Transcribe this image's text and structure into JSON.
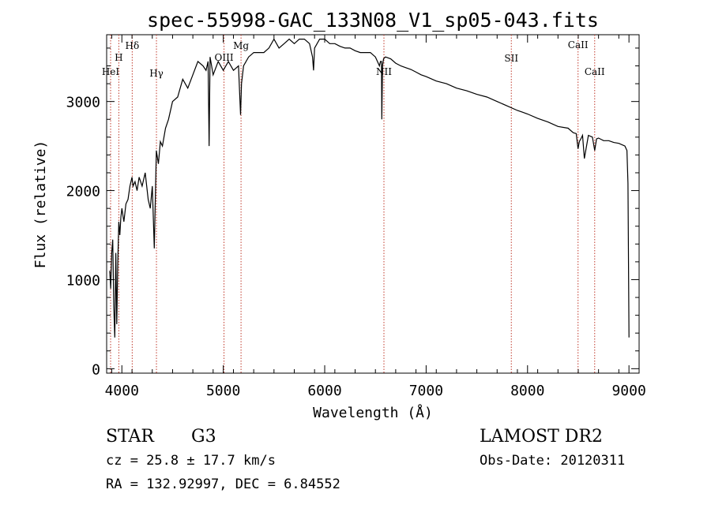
{
  "chart_data": {
    "type": "line",
    "title": "spec-55998-GAC_133N08_V1_sp05-043.fits",
    "xlabel": "Wavelength (Å)",
    "ylabel": "Flux (relative)",
    "xlim": [
      3850,
      9100
    ],
    "ylim": [
      -50,
      3750
    ],
    "x_ticks": [
      4000,
      5000,
      6000,
      7000,
      8000,
      9000
    ],
    "y_ticks": [
      0,
      1000,
      2000,
      3000
    ],
    "grid": false,
    "series": [
      {
        "x": [
          3880,
          3890,
          3900,
          3910,
          3920,
          3930,
          3940,
          3950,
          3960,
          3970,
          3980,
          3990,
          4000,
          4020,
          4040,
          4060,
          4080,
          4100,
          4110,
          4130,
          4150,
          4170,
          4200,
          4230,
          4260,
          4280,
          4300,
          4320,
          4340,
          4360,
          4380,
          4400,
          4430,
          4460,
          4500,
          4550,
          4600,
          4650,
          4700,
          4750,
          4800,
          4830,
          4850,
          4860,
          4870,
          4900,
          4950,
          5000,
          5050,
          5100,
          5150,
          5170,
          5180,
          5200,
          5250,
          5300,
          5350,
          5400,
          5450,
          5500,
          5550,
          5600,
          5650,
          5700,
          5750,
          5800,
          5850,
          5880,
          5890,
          5900,
          5950,
          6000,
          6050,
          6100,
          6150,
          6200,
          6250,
          6300,
          6350,
          6400,
          6450,
          6500,
          6540,
          6550,
          6560,
          6563,
          6570,
          6580,
          6600,
          6650,
          6700,
          6750,
          6800,
          6850,
          6900,
          6950,
          7000,
          7100,
          7200,
          7300,
          7400,
          7500,
          7600,
          7700,
          7800,
          7900,
          7950,
          8000,
          8100,
          8200,
          8300,
          8400,
          8450,
          8480,
          8498,
          8510,
          8530,
          8542,
          8560,
          8600,
          8640,
          8662,
          8680,
          8700,
          8750,
          8800,
          8850,
          8900,
          8960,
          8980,
          8990,
          9000
        ],
        "y": [
          1100,
          900,
          1300,
          1450,
          700,
          350,
          1300,
          500,
          1200,
          1650,
          1500,
          1700,
          1800,
          1650,
          1850,
          1900,
          2050,
          2150,
          2050,
          2100,
          2000,
          2150,
          2050,
          2200,
          1900,
          1800,
          2050,
          1350,
          2450,
          2300,
          2550,
          2500,
          2700,
          2800,
          3000,
          3050,
          3250,
          3150,
          3300,
          3450,
          3400,
          3350,
          3450,
          2500,
          3500,
          3300,
          3450,
          3350,
          3450,
          3350,
          3400,
          2850,
          3200,
          3400,
          3500,
          3550,
          3550,
          3550,
          3600,
          3700,
          3600,
          3650,
          3700,
          3650,
          3700,
          3700,
          3650,
          3500,
          3350,
          3600,
          3700,
          3700,
          3650,
          3650,
          3620,
          3600,
          3600,
          3570,
          3550,
          3550,
          3550,
          3500,
          3400,
          3450,
          3450,
          2800,
          3400,
          3480,
          3500,
          3480,
          3430,
          3400,
          3380,
          3360,
          3330,
          3300,
          3280,
          3230,
          3200,
          3150,
          3120,
          3080,
          3050,
          3000,
          2950,
          2900,
          2880,
          2860,
          2810,
          2770,
          2720,
          2700,
          2650,
          2640,
          2470,
          2550,
          2590,
          2620,
          2360,
          2620,
          2600,
          2450,
          2580,
          2590,
          2560,
          2560,
          2540,
          2530,
          2500,
          2450,
          2080,
          350
        ]
      }
    ],
    "spectral_lines": [
      {
        "label": "HeI",
        "wavelength": 3889
      },
      {
        "label": "H",
        "wavelength": 3970
      },
      {
        "label": "Hδ",
        "wavelength": 4102
      },
      {
        "label": "Hγ",
        "wavelength": 4341
      },
      {
        "label": "OIII",
        "wavelength": 5007
      },
      {
        "label": "Mg",
        "wavelength": 5175
      },
      {
        "label": "NII",
        "wavelength": 6584
      },
      {
        "label": "SII",
        "wavelength": 7840
      },
      {
        "label": "CaII",
        "wavelength": 8498
      },
      {
        "label": "CaII",
        "wavelength": 8662
      }
    ]
  },
  "info": {
    "object_class": "STAR",
    "subclass": "G3",
    "survey": "LAMOST DR2",
    "cz": "cz = 25.8 ± 17.7 km/s",
    "obs_date": "Obs-Date: 20120311",
    "radec": "RA = 132.92997, DEC =    6.84552"
  },
  "colors": {
    "spectrum": "#000000",
    "line_markers": "#c0392b"
  }
}
